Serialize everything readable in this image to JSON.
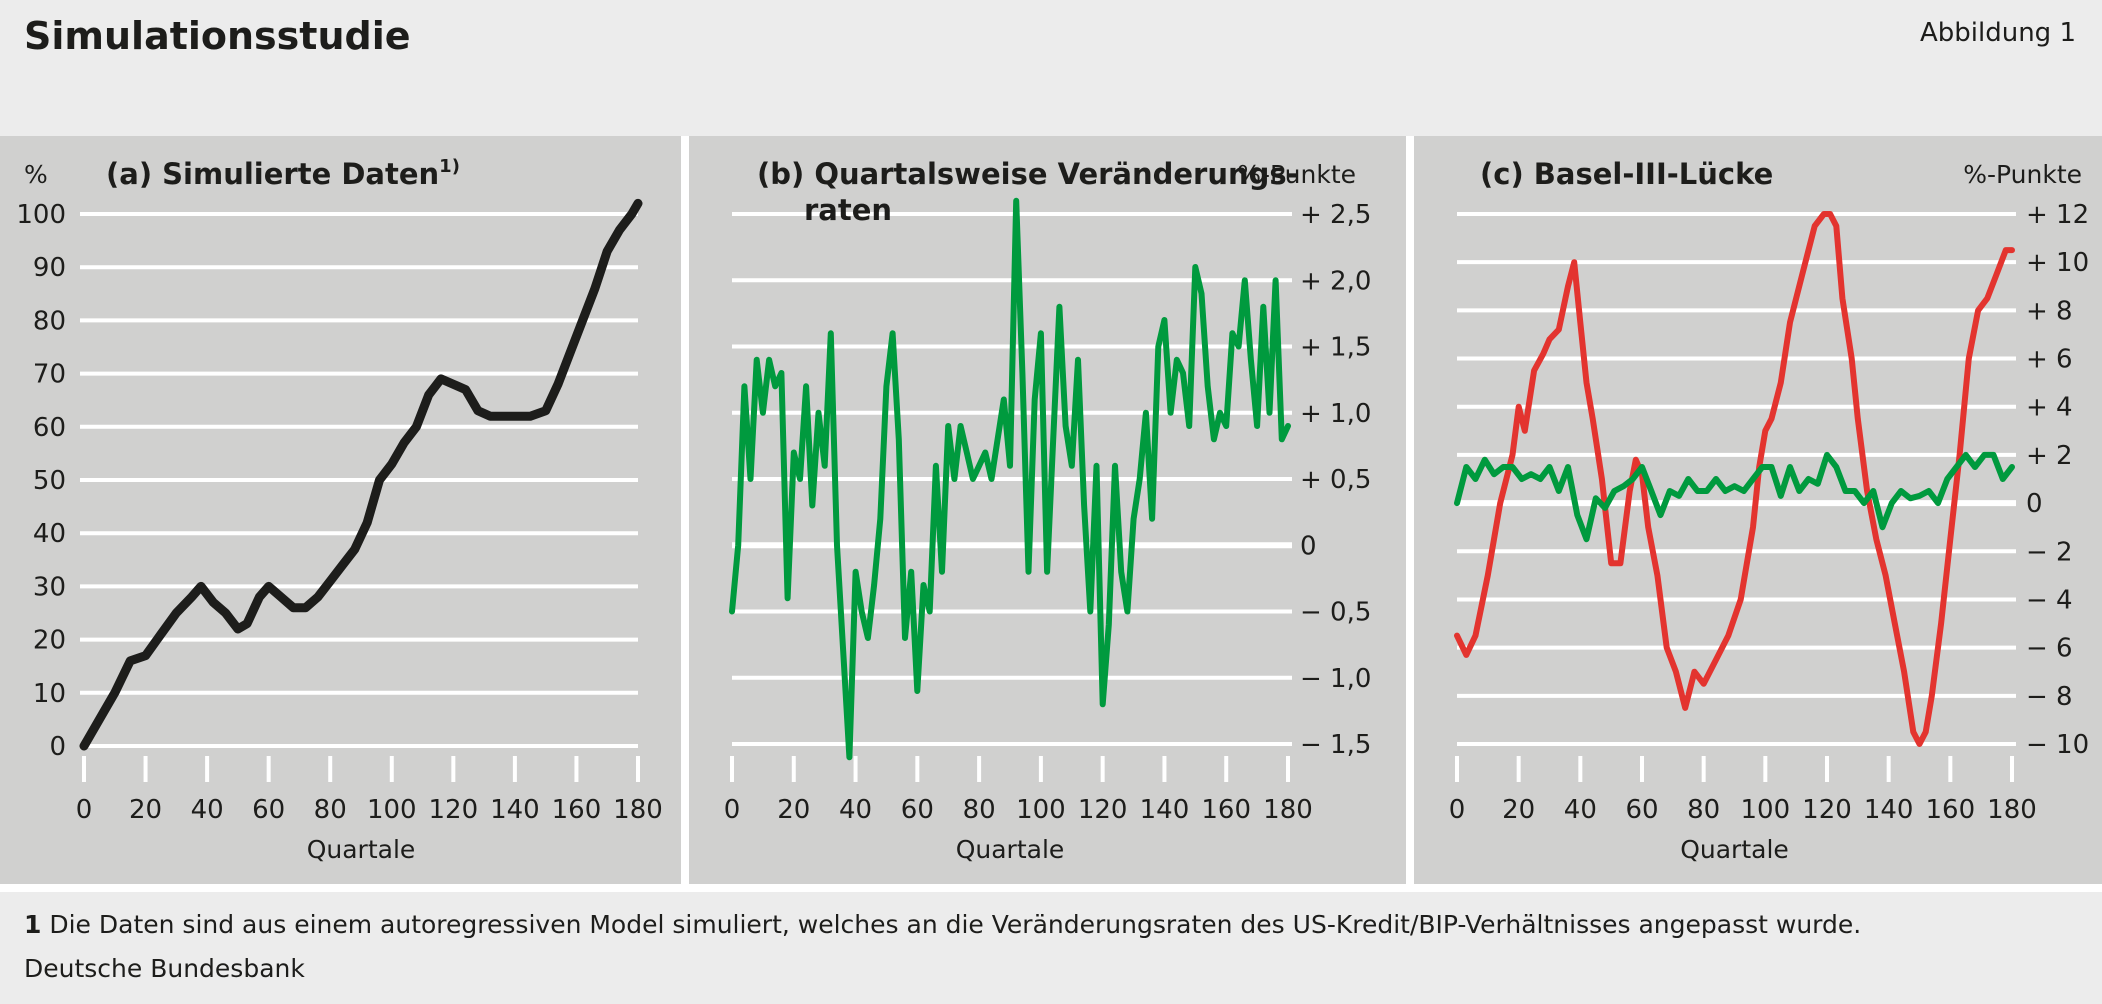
{
  "header": {
    "title": "Simulationsstudie",
    "figure_label": "Abbildung 1"
  },
  "footer": {
    "note_number": "1",
    "note_text": "Die Daten sind aus einem autoregressiven Model simuliert, welches an die Veränderungsraten des US-Kredit/BIP-Verhältnisses angepasst wurde.",
    "source": "Deutsche Bundesbank"
  },
  "colors": {
    "black_series": "#1d1d1b",
    "green_series": "#009a3e",
    "red_series": "#e3342f",
    "panel_bg": "#d0d0cf",
    "grid": "#ffffff"
  },
  "chart_data": [
    {
      "type": "line",
      "title": "(a) Simulierte Daten",
      "title_superscript": "1)",
      "ylabel": "%",
      "xlabel": "Quartale",
      "xlim": [
        0,
        180
      ],
      "ylim": [
        0,
        100
      ],
      "x_ticks": [
        0,
        20,
        40,
        60,
        80,
        100,
        120,
        140,
        160,
        180
      ],
      "x_tick_labels": [
        "0",
        "20",
        "40",
        "60",
        "80",
        "100",
        "120",
        "140",
        "160",
        "180"
      ],
      "y_ticks": [
        0,
        10,
        20,
        30,
        40,
        50,
        60,
        70,
        80,
        90,
        100
      ],
      "y_tick_labels": [
        "0",
        "10",
        "20",
        "30",
        "40",
        "50",
        "60",
        "70",
        "80",
        "90",
        "100"
      ],
      "y_axis_side": "left",
      "grid": true,
      "series": [
        {
          "color": "#1d1d1b",
          "x": [
            0,
            5,
            10,
            15,
            20,
            25,
            30,
            35,
            38,
            42,
            46,
            50,
            53,
            57,
            60,
            64,
            68,
            72,
            76,
            80,
            84,
            88,
            92,
            96,
            100,
            104,
            108,
            112,
            116,
            120,
            124,
            128,
            132,
            136,
            140,
            145,
            150,
            154,
            158,
            162,
            166,
            170,
            174,
            178,
            180
          ],
          "y": [
            0,
            5,
            10,
            16,
            17,
            21,
            25,
            28,
            30,
            27,
            25,
            22,
            23,
            28,
            30,
            28,
            26,
            26,
            28,
            31,
            34,
            37,
            42,
            50,
            53,
            57,
            60,
            66,
            69,
            68,
            67,
            63,
            62,
            62,
            62,
            62,
            63,
            68,
            74,
            80,
            86,
            93,
            97,
            100,
            102
          ]
        }
      ]
    },
    {
      "type": "line",
      "title": "(b) Quartalsweise Veränderungs-",
      "title_line2": "raten",
      "ylabel": "%-Punkte",
      "xlabel": "Quartale",
      "xlim": [
        0,
        180
      ],
      "ylim": [
        -1.5,
        2.5
      ],
      "x_ticks": [
        0,
        20,
        40,
        60,
        80,
        100,
        120,
        140,
        160,
        180
      ],
      "x_tick_labels": [
        "0",
        "20",
        "40",
        "60",
        "80",
        "100",
        "120",
        "140",
        "160",
        "180"
      ],
      "y_ticks": [
        2.5,
        2.0,
        1.5,
        1.0,
        0.5,
        0,
        -0.5,
        -1.0,
        -1.5
      ],
      "y_tick_labels": [
        "+ 2,5",
        "+ 2,0",
        "+ 1,5",
        "+ 1,0",
        "+ 0,5",
        "0",
        "− 0,5",
        "− 1,0",
        "− 1,5"
      ],
      "y_axis_side": "right",
      "grid": true,
      "series": [
        {
          "color": "#009a3e",
          "x": [
            0,
            2,
            4,
            6,
            8,
            10,
            12,
            14,
            16,
            18,
            20,
            22,
            24,
            26,
            28,
            30,
            32,
            34,
            36,
            38,
            40,
            42,
            44,
            46,
            48,
            50,
            52,
            54,
            56,
            58,
            60,
            62,
            64,
            66,
            68,
            70,
            72,
            74,
            76,
            78,
            80,
            82,
            84,
            86,
            88,
            90,
            92,
            94,
            96,
            98,
            100,
            102,
            104,
            106,
            108,
            110,
            112,
            114,
            116,
            118,
            120,
            122,
            124,
            126,
            128,
            130,
            132,
            134,
            136,
            138,
            140,
            142,
            144,
            146,
            148,
            150,
            152,
            154,
            156,
            158,
            160,
            162,
            164,
            166,
            168,
            170,
            172,
            174,
            176,
            178,
            180
          ],
          "y": [
            -0.5,
            0.0,
            1.2,
            0.5,
            1.4,
            1.0,
            1.4,
            1.2,
            1.3,
            -0.4,
            0.7,
            0.5,
            1.2,
            0.3,
            1.0,
            0.6,
            1.6,
            0.0,
            -0.8,
            -1.6,
            -0.2,
            -0.5,
            -0.7,
            -0.3,
            0.2,
            1.2,
            1.6,
            0.8,
            -0.7,
            -0.2,
            -1.1,
            -0.3,
            -0.5,
            0.6,
            -0.2,
            0.9,
            0.5,
            0.9,
            0.7,
            0.5,
            0.6,
            0.7,
            0.5,
            0.8,
            1.1,
            0.6,
            2.6,
            1.3,
            -0.2,
            1.1,
            1.6,
            -0.2,
            0.8,
            1.8,
            0.9,
            0.6,
            1.4,
            0.3,
            -0.5,
            0.6,
            -1.2,
            -0.6,
            0.6,
            -0.2,
            -0.5,
            0.2,
            0.5,
            1.0,
            0.2,
            1.5,
            1.7,
            1.0,
            1.4,
            1.3,
            0.9,
            2.1,
            1.9,
            1.2,
            0.8,
            1.0,
            0.9,
            1.6,
            1.5,
            2.0,
            1.4,
            0.9,
            1.8,
            1.0,
            2.0,
            0.8,
            0.9
          ]
        }
      ]
    },
    {
      "type": "line",
      "title": "(c) Basel-III-Lücke",
      "ylabel": "%-Punkte",
      "xlabel": "Quartale",
      "xlim": [
        0,
        180
      ],
      "ylim": [
        -10,
        12
      ],
      "x_ticks": [
        0,
        20,
        40,
        60,
        80,
        100,
        120,
        140,
        160,
        180
      ],
      "x_tick_labels": [
        "0",
        "20",
        "40",
        "60",
        "80",
        "100",
        "120",
        "140",
        "160",
        "180"
      ],
      "y_ticks": [
        12,
        10,
        8,
        6,
        4,
        2,
        0,
        -2,
        -4,
        -6,
        -8,
        -10
      ],
      "y_tick_labels": [
        "+ 12",
        "+ 10",
        "+ 8",
        "+ 6",
        "+ 4",
        "+ 2",
        "0",
        "− 2",
        "− 4",
        "− 6",
        "− 8",
        "− 10"
      ],
      "y_axis_side": "right",
      "grid": true,
      "series": [
        {
          "color": "#e3342f",
          "x": [
            0,
            3,
            6,
            10,
            14,
            18,
            20,
            22,
            25,
            28,
            30,
            33,
            36,
            38,
            40,
            42,
            44,
            47,
            50,
            53,
            56,
            58,
            60,
            62,
            65,
            68,
            71,
            74,
            77,
            80,
            84,
            88,
            92,
            96,
            98,
            100,
            102,
            105,
            108,
            112,
            116,
            119,
            121,
            123,
            125,
            128,
            130,
            133,
            136,
            139,
            142,
            145,
            148,
            150,
            152,
            154,
            157,
            160,
            163,
            166,
            169,
            172,
            175,
            178,
            180
          ],
          "y": [
            -5.5,
            -6.3,
            -5.5,
            -3.0,
            0.0,
            2.0,
            4.0,
            3.0,
            5.5,
            6.2,
            6.8,
            7.2,
            9.0,
            10.0,
            7.5,
            5.0,
            3.5,
            1.0,
            -2.5,
            -2.5,
            0.5,
            1.8,
            1.2,
            -1.0,
            -3.0,
            -6.0,
            -7.0,
            -8.5,
            -7.0,
            -7.5,
            -6.5,
            -5.5,
            -4.0,
            -1.0,
            1.5,
            3.0,
            3.5,
            5.0,
            7.5,
            9.5,
            11.5,
            12.0,
            12.0,
            11.5,
            8.5,
            6.0,
            3.5,
            0.5,
            -1.5,
            -3.0,
            -5.0,
            -7.0,
            -9.5,
            -10.0,
            -9.5,
            -8.0,
            -5.0,
            -1.5,
            2.0,
            6.0,
            8.0,
            8.5,
            9.5,
            10.5,
            10.5
          ]
        },
        {
          "color": "#009a3e",
          "x": [
            0,
            3,
            6,
            9,
            12,
            15,
            18,
            21,
            24,
            27,
            30,
            33,
            36,
            39,
            42,
            45,
            48,
            51,
            54,
            57,
            60,
            63,
            66,
            69,
            72,
            75,
            78,
            81,
            84,
            87,
            90,
            93,
            96,
            99,
            102,
            105,
            108,
            111,
            114,
            117,
            120,
            123,
            126,
            129,
            132,
            135,
            138,
            141,
            144,
            147,
            150,
            153,
            156,
            159,
            162,
            165,
            168,
            171,
            174,
            177,
            180
          ],
          "y": [
            0.0,
            1.5,
            1.0,
            1.8,
            1.2,
            1.5,
            1.5,
            1.0,
            1.2,
            1.0,
            1.5,
            0.5,
            1.5,
            -0.5,
            -1.5,
            0.2,
            -0.2,
            0.5,
            0.7,
            1.0,
            1.5,
            0.5,
            -0.5,
            0.5,
            0.3,
            1.0,
            0.5,
            0.5,
            1.0,
            0.5,
            0.7,
            0.5,
            1.0,
            1.5,
            1.5,
            0.3,
            1.5,
            0.5,
            1.0,
            0.8,
            2.0,
            1.5,
            0.5,
            0.5,
            0.0,
            0.5,
            -1.0,
            0.0,
            0.5,
            0.2,
            0.3,
            0.5,
            0.0,
            1.0,
            1.5,
            2.0,
            1.5,
            2.0,
            2.0,
            1.0,
            1.5
          ]
        }
      ]
    }
  ]
}
